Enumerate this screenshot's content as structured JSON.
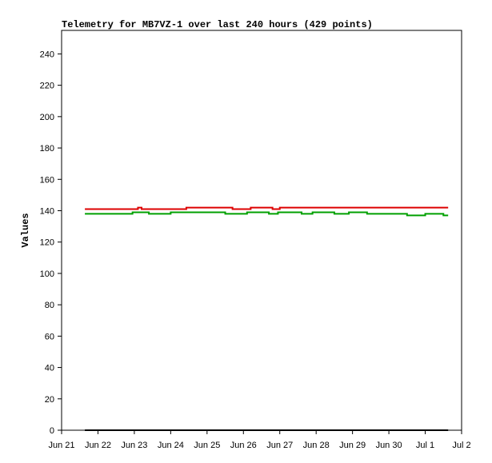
{
  "chart_data": {
    "type": "line",
    "title": "Telemetry for MB7VZ-1 over last 240 hours (429 points)",
    "y_label": "Values",
    "xlim": [
      0,
      11
    ],
    "xticks": [
      {
        "value": 0,
        "label": "Jun 21"
      },
      {
        "value": 1,
        "label": "Jun 22"
      },
      {
        "value": 2,
        "label": "Jun 23"
      },
      {
        "value": 3,
        "label": "Jun 24"
      },
      {
        "value": 4,
        "label": "Jun 25"
      },
      {
        "value": 5,
        "label": "Jun 26"
      },
      {
        "value": 6,
        "label": "Jun 27"
      },
      {
        "value": 7,
        "label": "Jun 28"
      },
      {
        "value": 8,
        "label": "Jun 29"
      },
      {
        "value": 9,
        "label": "Jun 30"
      },
      {
        "value": 10,
        "label": "Jul 1"
      },
      {
        "value": 11,
        "label": "Jul 2"
      }
    ],
    "ylim": [
      0,
      255
    ],
    "yticks": [
      0,
      20,
      40,
      60,
      80,
      100,
      120,
      140,
      160,
      180,
      200,
      220,
      240
    ],
    "series": [
      {
        "color": "#dd0000",
        "x": [
          0.64,
          2.1,
          2.1,
          2.2,
          2.2,
          3.43,
          3.43,
          4.7,
          4.7,
          5.2,
          5.2,
          5.8,
          5.8,
          6.0,
          6.0,
          10.63
        ],
        "values": [
          141,
          141,
          142,
          142,
          141,
          141,
          142,
          142,
          141,
          141,
          142,
          142,
          141,
          141,
          142,
          142
        ]
      },
      {
        "color": "#00a000",
        "x": [
          0.64,
          1.95,
          1.95,
          2.4,
          2.4,
          3.0,
          3.0,
          4.5,
          4.5,
          5.1,
          5.1,
          5.7,
          5.7,
          5.95,
          5.95,
          6.6,
          6.6,
          6.9,
          6.9,
          7.5,
          7.5,
          7.9,
          7.9,
          8.4,
          8.4,
          9.5,
          9.5,
          10.0,
          10.0,
          10.5,
          10.5,
          10.63
        ],
        "values": [
          138,
          138,
          139,
          139,
          138,
          138,
          139,
          139,
          138,
          138,
          139,
          139,
          138,
          138,
          139,
          139,
          138,
          138,
          139,
          139,
          138,
          138,
          139,
          139,
          138,
          138,
          137,
          137,
          138,
          138,
          137,
          137
        ]
      },
      {
        "color": "#000000",
        "x": [
          0.64,
          10.63
        ],
        "values": [
          0,
          0
        ]
      }
    ]
  }
}
